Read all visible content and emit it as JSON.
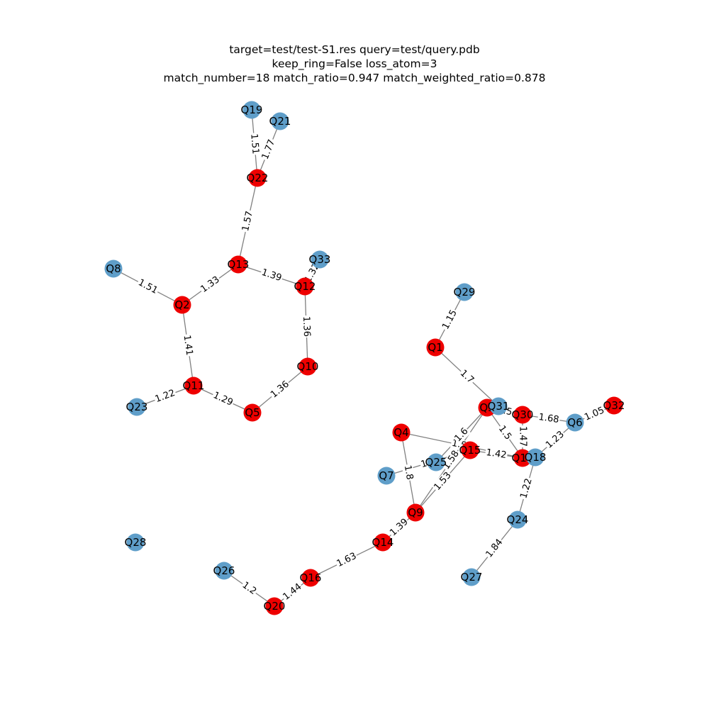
{
  "title": {
    "line1": "target=test/test-S1.res query=test/query.pdb",
    "line2": "keep_ring=False loss_atom=3",
    "line3": "match_number=18 match_ratio=0.947 match_weighted_ratio=0.878"
  },
  "colors": {
    "matched": "#ee0000",
    "unmatched": "#5f9ec9",
    "edge": "#808080"
  },
  "nodes": [
    {
      "id": "Q19",
      "matched": false
    },
    {
      "id": "Q21",
      "matched": false
    },
    {
      "id": "Q22",
      "matched": true
    },
    {
      "id": "Q13",
      "matched": true
    },
    {
      "id": "Q33",
      "matched": false
    },
    {
      "id": "Q8",
      "matched": false
    },
    {
      "id": "Q2",
      "matched": true
    },
    {
      "id": "Q12",
      "matched": true
    },
    {
      "id": "Q29",
      "matched": false
    },
    {
      "id": "Q10",
      "matched": true
    },
    {
      "id": "Q1",
      "matched": true
    },
    {
      "id": "Q11",
      "matched": true
    },
    {
      "id": "Q23",
      "matched": false
    },
    {
      "id": "Q5",
      "matched": true
    },
    {
      "id": "Q3",
      "matched": true
    },
    {
      "id": "Q31",
      "matched": false
    },
    {
      "id": "Q30",
      "matched": true
    },
    {
      "id": "Q32",
      "matched": true
    },
    {
      "id": "Q6",
      "matched": false
    },
    {
      "id": "Q4",
      "matched": true
    },
    {
      "id": "Q15",
      "matched": true
    },
    {
      "id": "Q25",
      "matched": false
    },
    {
      "id": "Q17",
      "matched": true
    },
    {
      "id": "Q18",
      "matched": false
    },
    {
      "id": "Q7",
      "matched": false
    },
    {
      "id": "Q9",
      "matched": true
    },
    {
      "id": "Q24",
      "matched": false
    },
    {
      "id": "Q14",
      "matched": true
    },
    {
      "id": "Q28",
      "matched": false
    },
    {
      "id": "Q26",
      "matched": false
    },
    {
      "id": "Q16",
      "matched": true
    },
    {
      "id": "Q27",
      "matched": false
    },
    {
      "id": "Q20",
      "matched": true
    }
  ],
  "edges": [
    {
      "source": "Q19",
      "target": "Q22",
      "label": "1.51"
    },
    {
      "source": "Q21",
      "target": "Q22",
      "label": "1.77"
    },
    {
      "source": "Q22",
      "target": "Q13",
      "label": "1.57"
    },
    {
      "source": "Q8",
      "target": "Q2",
      "label": "1.51"
    },
    {
      "source": "Q2",
      "target": "Q13",
      "label": "1.33"
    },
    {
      "source": "Q13",
      "target": "Q12",
      "label": "1.39"
    },
    {
      "source": "Q12",
      "target": "Q33",
      "label": "1.32"
    },
    {
      "source": "Q12",
      "target": "Q10",
      "label": "1.36"
    },
    {
      "source": "Q2",
      "target": "Q11",
      "label": "1.41"
    },
    {
      "source": "Q10",
      "target": "Q5",
      "label": "1.36"
    },
    {
      "source": "Q11",
      "target": "Q5",
      "label": "1.29"
    },
    {
      "source": "Q23",
      "target": "Q11",
      "label": "1.22"
    },
    {
      "source": "Q29",
      "target": "Q1",
      "label": "1.15"
    },
    {
      "source": "Q1",
      "target": "Q31",
      "label": "1.7"
    },
    {
      "source": "Q3",
      "target": "Q30",
      "label": "1.5"
    },
    {
      "source": "Q3",
      "target": "Q17",
      "label": "1.5"
    },
    {
      "source": "Q30",
      "target": "Q6",
      "label": "1.68"
    },
    {
      "source": "Q6",
      "target": "Q32",
      "label": "1.05"
    },
    {
      "source": "Q30",
      "target": "Q17",
      "label": "1.47"
    },
    {
      "source": "Q6",
      "target": "Q18",
      "label": "1.23"
    },
    {
      "source": "Q4",
      "target": "Q17",
      "label": "1.52"
    },
    {
      "source": "Q15",
      "target": "Q17",
      "label": "1.42"
    },
    {
      "source": "Q3",
      "target": "Q25",
      "label": "1.6"
    },
    {
      "source": "Q3",
      "target": "Q9",
      "label": "1.58"
    },
    {
      "source": "Q4",
      "target": "Q9",
      "label": "1.8"
    },
    {
      "source": "Q7",
      "target": "Q15",
      "label": "1.2"
    },
    {
      "source": "Q9",
      "target": "Q15",
      "label": "1.53"
    },
    {
      "source": "Q9",
      "target": "Q14",
      "label": "1.39"
    },
    {
      "source": "Q18",
      "target": "Q24",
      "label": "1.22"
    },
    {
      "source": "Q24",
      "target": "Q27",
      "label": "1.84"
    },
    {
      "source": "Q14",
      "target": "Q16",
      "label": "1.63"
    },
    {
      "source": "Q16",
      "target": "Q20",
      "label": "1.44"
    },
    {
      "source": "Q26",
      "target": "Q20",
      "label": "1.2"
    }
  ]
}
